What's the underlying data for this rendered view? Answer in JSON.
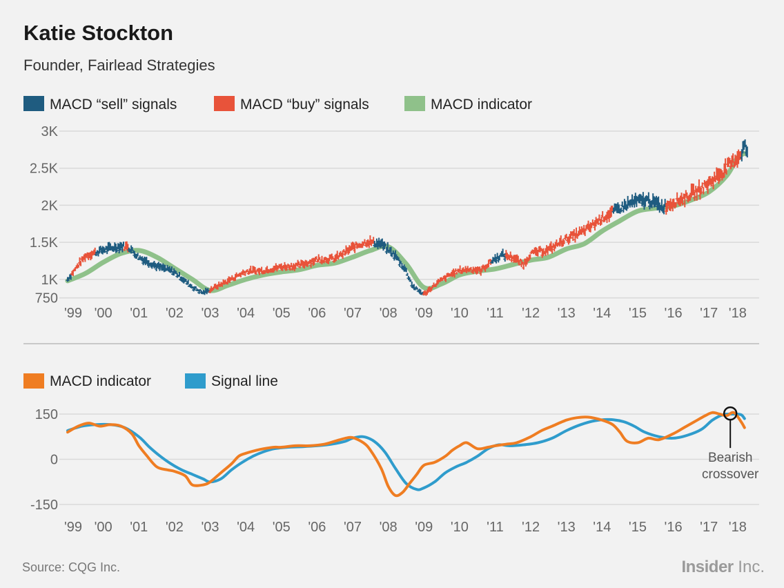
{
  "header": {
    "title": "Katie Stockton",
    "subtitle": "Founder, Fairlead Strategies"
  },
  "footer": {
    "source": "Source: CQG Inc.",
    "brand_bold": "Insider",
    "brand_light": " Inc."
  },
  "colors": {
    "sell": "#1f5c80",
    "buy": "#e8533a",
    "macd_top": "#8fc18a",
    "macd_bottom": "#ef7d22",
    "signal": "#2f9ccc",
    "grid": "#d9d9d9",
    "divider": "#c8c8c8"
  },
  "chart_data": [
    {
      "type": "bar",
      "subtype": "price-ohlc-with-indicator",
      "legend": [
        {
          "label": "MACD “sell” signals",
          "color": "#1f5c80"
        },
        {
          "label": "MACD “buy” signals",
          "color": "#e8533a"
        },
        {
          "label": "MACD indicator",
          "color": "#8fc18a"
        }
      ],
      "x_tick_labels": [
        "'99",
        "'00",
        "'01",
        "'02",
        "'03",
        "'04",
        "'05",
        "'06",
        "'07",
        "'08",
        "'09",
        "'10",
        "'11",
        "'12",
        "'13",
        "'14",
        "'15",
        "'16",
        "'17",
        "'18"
      ],
      "x_range": [
        1999.0,
        2018.1
      ],
      "y_tick_labels": [
        "3K",
        "2.5K",
        "2K",
        "1.5K",
        "1K",
        "750"
      ],
      "y_ticks": [
        3000,
        2500,
        2000,
        1500,
        1000,
        750
      ],
      "ylim": [
        700,
        3000
      ],
      "price": {
        "t": [
          1999.0,
          1999.5,
          2000.0,
          2000.5,
          2000.7,
          2001.0,
          2001.5,
          2002.0,
          2002.5,
          2002.8,
          2003.0,
          2003.5,
          2004.0,
          2004.5,
          2005.0,
          2005.5,
          2006.0,
          2006.5,
          2007.0,
          2007.4,
          2007.8,
          2008.2,
          2008.5,
          2008.7,
          2009.0,
          2009.4,
          2009.8,
          2010.0,
          2010.3,
          2010.6,
          2010.9,
          2011.2,
          2011.5,
          2011.8,
          2012.0,
          2012.5,
          2013.0,
          2013.5,
          2014.0,
          2014.5,
          2014.9,
          2015.3,
          2015.7,
          2016.0,
          2016.3,
          2016.7,
          2017.0,
          2017.3,
          2017.6,
          2017.9,
          2018.0,
          2018.1
        ],
        "v": [
          1000,
          1320,
          1400,
          1450,
          1440,
          1300,
          1180,
          1100,
          900,
          820,
          860,
          980,
          1110,
          1120,
          1170,
          1190,
          1270,
          1280,
          1430,
          1510,
          1480,
          1320,
          1120,
          900,
          800,
          960,
          1080,
          1120,
          1140,
          1120,
          1250,
          1330,
          1300,
          1200,
          1350,
          1400,
          1550,
          1650,
          1830,
          1960,
          2050,
          2070,
          1980,
          2040,
          2100,
          2200,
          2300,
          2420,
          2550,
          2700,
          2810,
          2700
        ]
      },
      "sell_periods": [
        [
          1999.0,
          1999.1
        ],
        [
          1999.8,
          2000.6
        ],
        [
          2000.7,
          2003.0
        ],
        [
          2007.6,
          2009.0
        ],
        [
          2010.9,
          2011.3
        ],
        [
          2014.3,
          2015.8
        ],
        [
          2017.9,
          2018.1
        ]
      ],
      "macd_indicator": {
        "t": [
          1999.0,
          1999.5,
          2000.0,
          2000.5,
          2001.0,
          2001.5,
          2002.0,
          2002.5,
          2003.0,
          2003.5,
          2004.0,
          2004.5,
          2005.0,
          2005.5,
          2006.0,
          2006.5,
          2007.0,
          2007.5,
          2008.0,
          2008.5,
          2009.0,
          2009.5,
          2010.0,
          2010.5,
          2011.0,
          2011.5,
          2012.0,
          2012.5,
          2013.0,
          2013.5,
          2014.0,
          2014.5,
          2015.0,
          2015.5,
          2016.0,
          2016.5,
          2017.0,
          2017.5,
          2017.8,
          2018.0
        ],
        "v": [
          980,
          1080,
          1230,
          1350,
          1390,
          1300,
          1150,
          1000,
          850,
          920,
          1000,
          1060,
          1100,
          1130,
          1190,
          1220,
          1300,
          1390,
          1440,
          1210,
          890,
          940,
          1060,
          1110,
          1140,
          1200,
          1260,
          1300,
          1410,
          1480,
          1650,
          1790,
          1920,
          1960,
          1990,
          2070,
          2180,
          2400,
          2640,
          2700
        ]
      }
    },
    {
      "type": "line",
      "legend": [
        {
          "label": "MACD indicator",
          "color": "#ef7d22"
        },
        {
          "label": "Signal line",
          "color": "#2f9ccc"
        }
      ],
      "x_tick_labels": [
        "'99",
        "'00",
        "'01",
        "'02",
        "'03",
        "'04",
        "'05",
        "'06",
        "'07",
        "'08",
        "'09",
        "'10",
        "'11",
        "'12",
        "'13",
        "'14",
        "'15",
        "'16",
        "'17",
        "'18"
      ],
      "x_range": [
        1999.0,
        2018.1
      ],
      "y_tick_labels": [
        "150",
        "0",
        "-150"
      ],
      "y_ticks": [
        150,
        0,
        -150
      ],
      "ylim": [
        -160,
        165
      ],
      "series": [
        {
          "name": "MACD indicator",
          "x": [
            1999.0,
            1999.3,
            1999.6,
            1999.9,
            2000.2,
            2000.5,
            2000.8,
            2001.0,
            2001.2,
            2001.5,
            2001.8,
            2002.0,
            2002.3,
            2002.5,
            2002.8,
            2003.0,
            2003.3,
            2003.6,
            2003.8,
            2004.0,
            2004.3,
            2004.5,
            2004.8,
            2005.0,
            2005.4,
            2005.8,
            2006.2,
            2006.5,
            2006.8,
            2007.0,
            2007.3,
            2007.5,
            2007.8,
            2008.0,
            2008.2,
            2008.4,
            2008.6,
            2008.8,
            2009.0,
            2009.3,
            2009.6,
            2009.8,
            2010.0,
            2010.2,
            2010.5,
            2010.8,
            2011.0,
            2011.3,
            2011.6,
            2012.0,
            2012.3,
            2012.6,
            2013.0,
            2013.3,
            2013.6,
            2014.0,
            2014.3,
            2014.5,
            2014.7,
            2015.0,
            2015.3,
            2015.6,
            2016.0,
            2016.3,
            2016.6,
            2016.9,
            2017.1,
            2017.3,
            2017.5,
            2017.7,
            2017.9,
            2018.0
          ],
          "y": [
            90,
            110,
            120,
            110,
            115,
            110,
            85,
            45,
            15,
            -25,
            -35,
            -40,
            -55,
            -85,
            -85,
            -75,
            -45,
            -15,
            10,
            20,
            30,
            35,
            40,
            40,
            45,
            45,
            50,
            60,
            70,
            72,
            55,
            30,
            -30,
            -90,
            -120,
            -110,
            -80,
            -50,
            -20,
            -10,
            10,
            30,
            45,
            55,
            35,
            40,
            45,
            50,
            55,
            75,
            95,
            110,
            130,
            138,
            140,
            130,
            115,
            90,
            60,
            55,
            70,
            65,
            85,
            105,
            125,
            145,
            155,
            150,
            145,
            155,
            125,
            105
          ]
        },
        {
          "name": "Signal line",
          "x": [
            1999.0,
            1999.4,
            1999.8,
            2000.2,
            2000.6,
            2001.0,
            2001.3,
            2001.6,
            2001.9,
            2002.2,
            2002.5,
            2002.8,
            2003.0,
            2003.3,
            2003.6,
            2003.9,
            2004.2,
            2004.5,
            2004.8,
            2005.2,
            2005.6,
            2006.0,
            2006.4,
            2006.8,
            2007.0,
            2007.3,
            2007.6,
            2007.9,
            2008.2,
            2008.5,
            2008.8,
            2009.0,
            2009.3,
            2009.6,
            2009.9,
            2010.2,
            2010.5,
            2010.8,
            2011.1,
            2011.4,
            2011.8,
            2012.2,
            2012.6,
            2013.0,
            2013.4,
            2013.8,
            2014.2,
            2014.6,
            2014.9,
            2015.2,
            2015.6,
            2016.0,
            2016.4,
            2016.8,
            2017.1,
            2017.4,
            2017.7,
            2017.9,
            2018.0
          ],
          "y": [
            95,
            110,
            115,
            115,
            105,
            75,
            40,
            10,
            -15,
            -35,
            -50,
            -65,
            -75,
            -65,
            -35,
            -10,
            10,
            25,
            35,
            40,
            42,
            45,
            50,
            60,
            70,
            75,
            60,
            25,
            -30,
            -80,
            -100,
            -95,
            -75,
            -45,
            -25,
            -10,
            10,
            35,
            48,
            45,
            48,
            55,
            70,
            95,
            115,
            128,
            132,
            125,
            110,
            90,
            75,
            70,
            80,
            100,
            130,
            148,
            150,
            148,
            135
          ]
        }
      ],
      "annotations": [
        {
          "text": [
            "Bearish",
            "crossover"
          ],
          "x": 2017.6,
          "y": 152
        }
      ]
    }
  ]
}
